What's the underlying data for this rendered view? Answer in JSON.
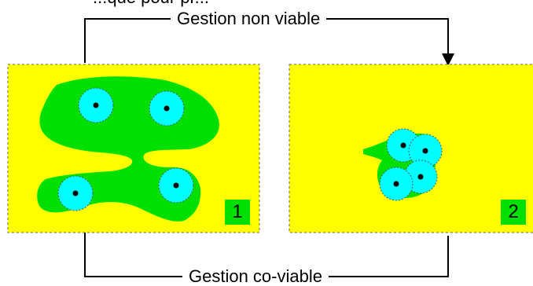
{
  "header_fragment": "...que pour pr...",
  "arrows": {
    "top_label": "Gestion non viable",
    "bottom_label": "Gestion co-viable"
  },
  "panels": [
    {
      "badge": "1",
      "patch_count": 4
    },
    {
      "badge": "2",
      "patch_count": 4
    }
  ],
  "colors": {
    "background": "#ffff00",
    "habitat": "#00e000",
    "patch": "#00ffff",
    "badge": "#00e000",
    "border": "#666666"
  }
}
